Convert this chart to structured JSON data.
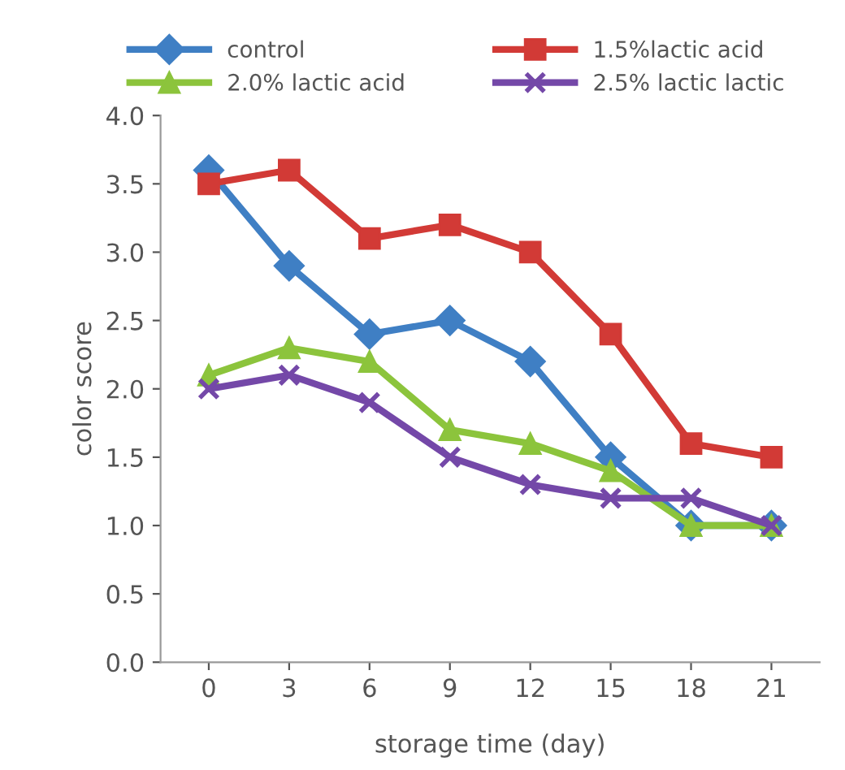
{
  "chart_data": {
    "type": "line",
    "xlabel": "storage time (day)",
    "ylabel": "color score",
    "categories": [
      "0",
      "3",
      "6",
      "9",
      "12",
      "15",
      "18",
      "21"
    ],
    "series": [
      {
        "name": "control",
        "color": "#3f7fc4",
        "marker": "diamond",
        "values": [
          3.6,
          2.9,
          2.4,
          2.5,
          2.2,
          1.5,
          1.0,
          1.0
        ]
      },
      {
        "name": "1.5%lactic acid",
        "color": "#d23a36",
        "marker": "square",
        "values": [
          3.5,
          3.6,
          3.1,
          3.2,
          3.0,
          2.4,
          1.6,
          1.5
        ]
      },
      {
        "name": "2.0% lactic acid",
        "color": "#8cc43c",
        "marker": "triangle",
        "values": [
          2.1,
          2.3,
          2.2,
          1.7,
          1.6,
          1.4,
          1.0,
          1.0
        ]
      },
      {
        "name": "2.5% lactic lactic",
        "color": "#7448a8",
        "marker": "cross",
        "values": [
          2.0,
          2.1,
          1.9,
          1.5,
          1.3,
          1.2,
          1.2,
          1.0
        ]
      }
    ],
    "ylim": [
      0,
      4
    ],
    "yticks": [
      {
        "value": 0,
        "label": "0.0"
      },
      0.5,
      {
        "value": 1,
        "label": "1.0"
      },
      1.5,
      {
        "value": 2,
        "label": "2.0"
      },
      2.5,
      {
        "value": 3,
        "label": "3.0"
      },
      3.5,
      {
        "value": 4,
        "label": "4.0"
      }
    ],
    "grid": false,
    "legend": "top",
    "line_style": "solid"
  }
}
